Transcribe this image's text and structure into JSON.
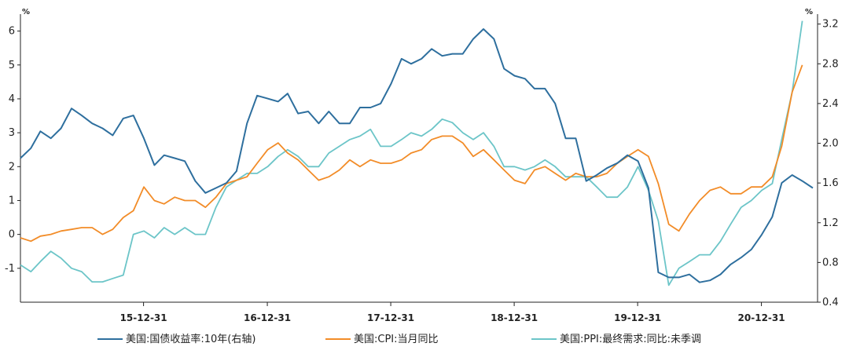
{
  "chart_data": {
    "type": "line",
    "left_axis": {
      "unit": "%",
      "range": [
        -2,
        6.5
      ],
      "ticks": [
        "-1",
        "0",
        "1",
        "2",
        "3",
        "4",
        "5",
        "6"
      ]
    },
    "right_axis": {
      "unit": "%",
      "range": [
        0.4,
        3.3
      ],
      "ticks": [
        "0.4",
        "0.8",
        "1.2",
        "1.6",
        "2.0",
        "2.4",
        "2.8",
        "3.2"
      ]
    },
    "x_axis": {
      "range": [
        "2015-01-01",
        "2021-06-15"
      ],
      "ticks": [
        "15-12-31",
        "16-12-31",
        "17-12-31",
        "18-12-31",
        "19-12-31",
        "20-12-31"
      ]
    },
    "legend_position": "bottom",
    "series": [
      {
        "name": "美国:国债收益率:10年(右轴)",
        "axis": "right",
        "color": "#2e6f9e",
        "x": [
          "2015-01-01",
          "2015-02-01",
          "2015-03-01",
          "2015-04-01",
          "2015-05-01",
          "2015-06-01",
          "2015-07-01",
          "2015-08-01",
          "2015-09-01",
          "2015-10-01",
          "2015-11-01",
          "2015-12-01",
          "2016-01-01",
          "2016-02-01",
          "2016-03-01",
          "2016-04-01",
          "2016-05-01",
          "2016-06-01",
          "2016-07-01",
          "2016-08-01",
          "2016-09-01",
          "2016-10-01",
          "2016-11-01",
          "2016-12-01",
          "2017-01-01",
          "2017-02-01",
          "2017-03-01",
          "2017-04-01",
          "2017-05-01",
          "2017-06-01",
          "2017-07-01",
          "2017-08-01",
          "2017-09-01",
          "2017-10-01",
          "2017-11-01",
          "2017-12-01",
          "2018-01-01",
          "2018-02-01",
          "2018-03-01",
          "2018-04-01",
          "2018-05-01",
          "2018-06-01",
          "2018-07-01",
          "2018-08-01",
          "2018-09-01",
          "2018-10-01",
          "2018-11-01",
          "2018-12-01",
          "2019-01-01",
          "2019-02-01",
          "2019-03-01",
          "2019-04-01",
          "2019-05-01",
          "2019-06-01",
          "2019-07-01",
          "2019-08-01",
          "2019-09-01",
          "2019-10-01",
          "2019-11-01",
          "2019-12-01",
          "2020-01-01",
          "2020-02-01",
          "2020-03-01",
          "2020-04-01",
          "2020-05-01",
          "2020-06-01",
          "2020-07-01",
          "2020-08-01",
          "2020-09-01",
          "2020-10-01",
          "2020-11-01",
          "2020-12-01",
          "2021-01-01",
          "2021-02-01",
          "2021-03-01",
          "2021-04-01",
          "2021-05-01",
          "2021-06-01"
        ],
        "values": [
          1.85,
          1.95,
          2.12,
          2.05,
          2.15,
          2.35,
          2.28,
          2.2,
          2.15,
          2.08,
          2.25,
          2.28,
          2.05,
          1.78,
          1.88,
          1.85,
          1.82,
          1.62,
          1.5,
          1.55,
          1.6,
          1.72,
          2.2,
          2.48,
          2.45,
          2.42,
          2.5,
          2.3,
          2.32,
          2.2,
          2.32,
          2.2,
          2.2,
          2.36,
          2.36,
          2.4,
          2.6,
          2.85,
          2.8,
          2.85,
          2.95,
          2.88,
          2.9,
          2.9,
          3.05,
          3.15,
          3.05,
          2.75,
          2.68,
          2.65,
          2.55,
          2.55,
          2.4,
          2.05,
          2.05,
          1.62,
          1.68,
          1.75,
          1.8,
          1.88,
          1.82,
          1.55,
          0.7,
          0.65,
          0.65,
          0.68,
          0.6,
          0.62,
          0.68,
          0.78,
          0.85,
          0.93,
          1.08,
          1.26,
          1.6,
          1.68,
          1.62,
          1.55
        ]
      },
      {
        "name": "美国:CPI:当月同比",
        "axis": "left",
        "color": "#f28c28",
        "x": [
          "2015-01-01",
          "2015-02-01",
          "2015-03-01",
          "2015-04-01",
          "2015-05-01",
          "2015-06-01",
          "2015-07-01",
          "2015-08-01",
          "2015-09-01",
          "2015-10-01",
          "2015-11-01",
          "2015-12-01",
          "2016-01-01",
          "2016-02-01",
          "2016-03-01",
          "2016-04-01",
          "2016-05-01",
          "2016-06-01",
          "2016-07-01",
          "2016-08-01",
          "2016-09-01",
          "2016-10-01",
          "2016-11-01",
          "2016-12-01",
          "2017-01-01",
          "2017-02-01",
          "2017-03-01",
          "2017-04-01",
          "2017-05-01",
          "2017-06-01",
          "2017-07-01",
          "2017-08-01",
          "2017-09-01",
          "2017-10-01",
          "2017-11-01",
          "2017-12-01",
          "2018-01-01",
          "2018-02-01",
          "2018-03-01",
          "2018-04-01",
          "2018-05-01",
          "2018-06-01",
          "2018-07-01",
          "2018-08-01",
          "2018-09-01",
          "2018-10-01",
          "2018-11-01",
          "2018-12-01",
          "2019-01-01",
          "2019-02-01",
          "2019-03-01",
          "2019-04-01",
          "2019-05-01",
          "2019-06-01",
          "2019-07-01",
          "2019-08-01",
          "2019-09-01",
          "2019-10-01",
          "2019-11-01",
          "2019-12-01",
          "2020-01-01",
          "2020-02-01",
          "2020-03-01",
          "2020-04-01",
          "2020-05-01",
          "2020-06-01",
          "2020-07-01",
          "2020-08-01",
          "2020-09-01",
          "2020-10-01",
          "2020-11-01",
          "2020-12-01",
          "2021-01-01",
          "2021-02-01",
          "2021-03-01",
          "2021-04-01",
          "2021-05-01"
        ],
        "values": [
          -0.1,
          -0.2,
          -0.05,
          0.0,
          0.1,
          0.15,
          0.2,
          0.2,
          0.0,
          0.15,
          0.5,
          0.7,
          1.4,
          1.0,
          0.9,
          1.1,
          1.0,
          1.0,
          0.8,
          1.1,
          1.5,
          1.6,
          1.7,
          2.1,
          2.5,
          2.7,
          2.4,
          2.2,
          1.9,
          1.6,
          1.7,
          1.9,
          2.2,
          2.0,
          2.2,
          2.1,
          2.1,
          2.2,
          2.4,
          2.5,
          2.8,
          2.9,
          2.9,
          2.7,
          2.3,
          2.5,
          2.2,
          1.9,
          1.6,
          1.5,
          1.9,
          2.0,
          1.8,
          1.6,
          1.8,
          1.7,
          1.7,
          1.8,
          2.1,
          2.3,
          2.5,
          2.3,
          1.5,
          0.3,
          0.1,
          0.6,
          1.0,
          1.3,
          1.4,
          1.2,
          1.2,
          1.4,
          1.4,
          1.7,
          2.6,
          4.2,
          5.0
        ]
      },
      {
        "name": "美国:PPI:最终需求:同比:未季调",
        "axis": "left",
        "color": "#6cc5c8",
        "x": [
          "2015-01-01",
          "2015-02-01",
          "2015-03-01",
          "2015-04-01",
          "2015-05-01",
          "2015-06-01",
          "2015-07-01",
          "2015-08-01",
          "2015-09-01",
          "2015-10-01",
          "2015-11-01",
          "2015-12-01",
          "2016-01-01",
          "2016-02-01",
          "2016-03-01",
          "2016-04-01",
          "2016-05-01",
          "2016-06-01",
          "2016-07-01",
          "2016-08-01",
          "2016-09-01",
          "2016-10-01",
          "2016-11-01",
          "2016-12-01",
          "2017-01-01",
          "2017-02-01",
          "2017-03-01",
          "2017-04-01",
          "2017-05-01",
          "2017-06-01",
          "2017-07-01",
          "2017-08-01",
          "2017-09-01",
          "2017-10-01",
          "2017-11-01",
          "2017-12-01",
          "2018-01-01",
          "2018-02-01",
          "2018-03-01",
          "2018-04-01",
          "2018-05-01",
          "2018-06-01",
          "2018-07-01",
          "2018-08-01",
          "2018-09-01",
          "2018-10-01",
          "2018-11-01",
          "2018-12-01",
          "2019-01-01",
          "2019-02-01",
          "2019-03-01",
          "2019-04-01",
          "2019-05-01",
          "2019-06-01",
          "2019-07-01",
          "2019-08-01",
          "2019-09-01",
          "2019-10-01",
          "2019-11-01",
          "2019-12-01",
          "2020-01-01",
          "2020-02-01",
          "2020-03-01",
          "2020-04-01",
          "2020-05-01",
          "2020-06-01",
          "2020-07-01",
          "2020-08-01",
          "2020-09-01",
          "2020-10-01",
          "2020-11-01",
          "2020-12-01",
          "2021-01-01",
          "2021-02-01",
          "2021-03-01",
          "2021-04-01",
          "2021-05-01"
        ],
        "values": [
          -0.9,
          -1.1,
          -0.8,
          -0.5,
          -0.7,
          -1.0,
          -1.1,
          -1.4,
          -1.4,
          -1.3,
          -1.2,
          0.0,
          0.1,
          -0.1,
          0.2,
          0.0,
          0.2,
          0.0,
          0.0,
          0.8,
          1.4,
          1.6,
          1.8,
          1.8,
          2.0,
          2.3,
          2.5,
          2.3,
          2.0,
          2.0,
          2.4,
          2.6,
          2.8,
          2.9,
          3.1,
          2.6,
          2.6,
          2.8,
          3.0,
          2.9,
          3.1,
          3.4,
          3.3,
          3.0,
          2.8,
          3.0,
          2.6,
          2.0,
          2.0,
          1.9,
          2.0,
          2.2,
          2.0,
          1.7,
          1.7,
          1.7,
          1.4,
          1.1,
          1.1,
          1.4,
          2.0,
          1.3,
          0.4,
          -1.5,
          -1.0,
          -0.8,
          -0.6,
          -0.6,
          -0.2,
          0.3,
          0.8,
          1.0,
          1.3,
          1.5,
          2.8,
          4.2,
          6.3
        ]
      }
    ]
  }
}
